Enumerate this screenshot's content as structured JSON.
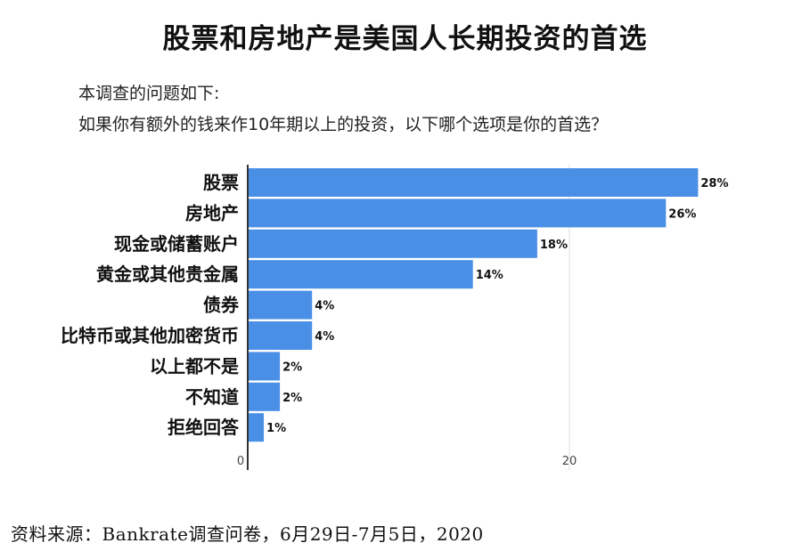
{
  "title": "股票和房地产是美国人长期投资的首选",
  "question": {
    "line1": "本调查的问题如下:",
    "line2": "如果你有额外的钱来作10年期以上的投资，以下哪个选项是你的首选？"
  },
  "source": "资料来源：Bankrate调查问卷，6月29日-7月5日，2020",
  "colors": {
    "bar": "#4a8fe6",
    "axis": "#333333",
    "grid": "#dddddd"
  },
  "chart_data": {
    "type": "bar",
    "orientation": "horizontal",
    "categories": [
      "股票",
      "房地产",
      "现金或储蓄账户",
      "黄金或其他贵金属",
      "债券",
      "比特币或其他加密货币",
      "以上都不是",
      "不知道",
      "拒绝回答"
    ],
    "values": [
      28,
      26,
      18,
      14,
      4,
      4,
      2,
      2,
      1
    ],
    "value_labels": [
      "28%",
      "26%",
      "18%",
      "14%",
      "4%",
      "4%",
      "2%",
      "2%",
      "1%"
    ],
    "unit": "%",
    "xlim": [
      0,
      28
    ],
    "xticks": [
      0,
      20
    ],
    "grid": true
  }
}
